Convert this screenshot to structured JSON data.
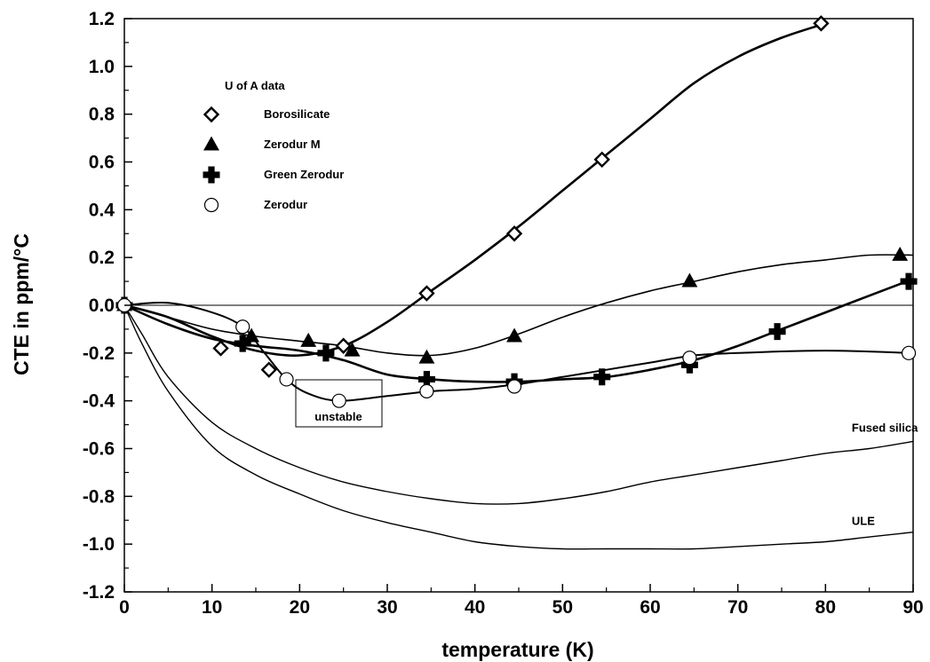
{
  "chart_data": {
    "type": "scatter",
    "title": "",
    "xlabel": "temperature (K)",
    "ylabel": "CTE in ppm/°C",
    "xlim": [
      0,
      90
    ],
    "ylim": [
      -1.2,
      1.2
    ],
    "xticks": [
      0,
      10,
      20,
      30,
      40,
      50,
      60,
      70,
      80,
      90
    ],
    "yticks": [
      -1.2,
      -1.0,
      -0.8,
      -0.6,
      -0.4,
      -0.2,
      0.0,
      0.2,
      0.4,
      0.6,
      0.8,
      1.0,
      1.2
    ],
    "xtick_labels": [
      "0",
      "10",
      "20",
      "30",
      "40",
      "50",
      "60",
      "70",
      "80",
      "90"
    ],
    "ytick_labels": [
      "-1.2",
      "-1.0",
      "-0.8",
      "-0.6",
      "-0.4",
      "-0.2",
      "0.0",
      "0.2",
      "0.4",
      "0.6",
      "0.8",
      "1.0",
      "1.2"
    ],
    "grid": false,
    "zero_line": true,
    "legend": {
      "title": "U of A data",
      "placement": "top-left"
    },
    "series": [
      {
        "name": "Borosilicate",
        "marker": "diamond",
        "x": [
          0,
          11,
          16.5,
          25,
          34.5,
          44.5,
          54.5,
          79.5
        ],
        "y": [
          0,
          -0.18,
          -0.27,
          -0.17,
          0.05,
          0.3,
          0.61,
          1.18
        ],
        "curve": [
          [
            0,
            0
          ],
          [
            5,
            -0.05
          ],
          [
            10,
            -0.13
          ],
          [
            15,
            -0.19
          ],
          [
            20,
            -0.21
          ],
          [
            25,
            -0.17
          ],
          [
            30,
            -0.07
          ],
          [
            35,
            0.06
          ],
          [
            40,
            0.19
          ],
          [
            45,
            0.33
          ],
          [
            50,
            0.48
          ],
          [
            55,
            0.63
          ],
          [
            60,
            0.78
          ],
          [
            65,
            0.93
          ],
          [
            70,
            1.04
          ],
          [
            75,
            1.12
          ],
          [
            80,
            1.18
          ]
        ]
      },
      {
        "name": "Zerodur M",
        "marker": "triangle",
        "x": [
          0,
          14.5,
          21,
          26,
          34.5,
          44.5,
          64.5,
          88.5
        ],
        "y": [
          0,
          -0.13,
          -0.15,
          -0.19,
          -0.22,
          -0.13,
          0.1,
          0.21
        ],
        "curve": [
          [
            0,
            0
          ],
          [
            5,
            -0.05
          ],
          [
            10,
            -0.1
          ],
          [
            15,
            -0.13
          ],
          [
            20,
            -0.15
          ],
          [
            25,
            -0.17
          ],
          [
            30,
            -0.2
          ],
          [
            35,
            -0.21
          ],
          [
            40,
            -0.18
          ],
          [
            45,
            -0.12
          ],
          [
            50,
            -0.05
          ],
          [
            55,
            0.01
          ],
          [
            60,
            0.06
          ],
          [
            65,
            0.1
          ],
          [
            70,
            0.14
          ],
          [
            75,
            0.17
          ],
          [
            80,
            0.19
          ],
          [
            85,
            0.21
          ],
          [
            90,
            0.21
          ]
        ]
      },
      {
        "name": "Green Zerodur",
        "marker": "plus",
        "x": [
          0,
          13.5,
          23,
          34.5,
          44.5,
          54.5,
          64.5,
          74.5,
          89.5
        ],
        "y": [
          0,
          -0.16,
          -0.2,
          -0.31,
          -0.32,
          -0.3,
          -0.25,
          -0.11,
          0.1
        ],
        "curve": [
          [
            0,
            0
          ],
          [
            5,
            -0.08
          ],
          [
            10,
            -0.14
          ],
          [
            15,
            -0.17
          ],
          [
            20,
            -0.19
          ],
          [
            25,
            -0.23
          ],
          [
            30,
            -0.29
          ],
          [
            35,
            -0.31
          ],
          [
            40,
            -0.32
          ],
          [
            45,
            -0.32
          ],
          [
            50,
            -0.31
          ],
          [
            55,
            -0.3
          ],
          [
            60,
            -0.27
          ],
          [
            65,
            -0.23
          ],
          [
            70,
            -0.17
          ],
          [
            75,
            -0.1
          ],
          [
            80,
            -0.03
          ],
          [
            85,
            0.04
          ],
          [
            90,
            0.11
          ]
        ]
      },
      {
        "name": "Zerodur",
        "marker": "circle",
        "x": [
          0,
          13.5,
          18.5,
          24.5,
          34.5,
          44.5,
          64.5,
          89.5
        ],
        "y": [
          0,
          -0.09,
          -0.31,
          -0.4,
          -0.36,
          -0.34,
          -0.22,
          -0.2
        ],
        "curve": [
          [
            0,
            0
          ],
          [
            5,
            0.01
          ],
          [
            10,
            -0.03
          ],
          [
            13.5,
            -0.09
          ],
          [
            16,
            -0.2
          ],
          [
            18.5,
            -0.31
          ],
          [
            21,
            -0.37
          ],
          [
            24.5,
            -0.4
          ],
          [
            30,
            -0.38
          ],
          [
            35,
            -0.36
          ],
          [
            40,
            -0.35
          ],
          [
            45,
            -0.33
          ],
          [
            50,
            -0.3
          ],
          [
            55,
            -0.27
          ],
          [
            60,
            -0.24
          ],
          [
            65,
            -0.21
          ],
          [
            70,
            -0.2
          ],
          [
            80,
            -0.19
          ],
          [
            90,
            -0.2
          ]
        ]
      },
      {
        "name": "Fused silica",
        "marker": "none",
        "curve": [
          [
            0,
            0
          ],
          [
            2,
            -0.12
          ],
          [
            5,
            -0.3
          ],
          [
            10,
            -0.49
          ],
          [
            15,
            -0.6
          ],
          [
            20,
            -0.68
          ],
          [
            25,
            -0.74
          ],
          [
            30,
            -0.78
          ],
          [
            35,
            -0.81
          ],
          [
            40,
            -0.83
          ],
          [
            45,
            -0.83
          ],
          [
            50,
            -0.81
          ],
          [
            55,
            -0.78
          ],
          [
            60,
            -0.74
          ],
          [
            65,
            -0.71
          ],
          [
            70,
            -0.68
          ],
          [
            75,
            -0.65
          ],
          [
            80,
            -0.62
          ],
          [
            85,
            -0.6
          ],
          [
            90,
            -0.57
          ]
        ]
      },
      {
        "name": "ULE",
        "marker": "none",
        "curve": [
          [
            0,
            0
          ],
          [
            2,
            -0.16
          ],
          [
            5,
            -0.36
          ],
          [
            10,
            -0.59
          ],
          [
            15,
            -0.71
          ],
          [
            20,
            -0.79
          ],
          [
            25,
            -0.86
          ],
          [
            30,
            -0.91
          ],
          [
            35,
            -0.95
          ],
          [
            40,
            -0.99
          ],
          [
            45,
            -1.01
          ],
          [
            50,
            -1.02
          ],
          [
            55,
            -1.02
          ],
          [
            60,
            -1.02
          ],
          [
            65,
            -1.02
          ],
          [
            70,
            -1.01
          ],
          [
            75,
            -1.0
          ],
          [
            80,
            -0.99
          ],
          [
            85,
            -0.97
          ],
          [
            90,
            -0.95
          ]
        ]
      }
    ],
    "annotations": [
      {
        "text": "unstable",
        "x": 22,
        "y": -0.45,
        "boxed": true
      },
      {
        "text": "Fused silica",
        "x": 83,
        "y": -0.53
      },
      {
        "text": "ULE",
        "x": 83,
        "y": -0.92
      }
    ]
  }
}
